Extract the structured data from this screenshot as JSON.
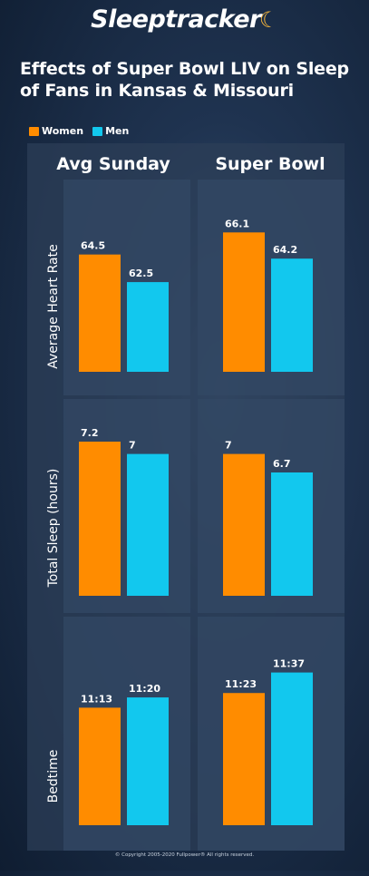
{
  "header": {
    "brand": "Sleeptracker",
    "title": "Effects of Super Bowl LIV on Sleep of Fans in Kansas & Missouri"
  },
  "legend": [
    {
      "label": "Women",
      "color": "#ff8c00"
    },
    {
      "label": "Men",
      "color": "#12c8ee"
    }
  ],
  "footer": {
    "copyright": "© Copyright 2005-2020 Fullpower® All rights reserved."
  },
  "chart_data": {
    "type": "bar",
    "columns": [
      "Avg Sunday",
      "Super Bowl"
    ],
    "series": [
      {
        "name": "Women",
        "color": "#ff8c00"
      },
      {
        "name": "Men",
        "color": "#12c8ee"
      }
    ],
    "rows": [
      {
        "label": "Average Heart Rate",
        "ylim": [
          56,
          67.5
        ],
        "cells": [
          {
            "values": [
              64.5,
              62.5
            ],
            "labels": [
              "64.5",
              "62.5"
            ]
          },
          {
            "values": [
              66.1,
              64.2
            ],
            "labels": [
              "66.1",
              "64.2"
            ]
          }
        ]
      },
      {
        "label": "Total Sleep (hours)",
        "ylim": [
          4.7,
          7.45
        ],
        "cells": [
          {
            "values": [
              7.2,
              7.0
            ],
            "labels": [
              "7.2",
              "7"
            ]
          },
          {
            "values": [
              7.0,
              6.7
            ],
            "labels": [
              "7",
              "6.7"
            ]
          }
        ]
      },
      {
        "label": "Bedtime",
        "ylim": [
          9.88,
          11.86
        ],
        "cells": [
          {
            "values": [
              11.2167,
              11.3333
            ],
            "labels": [
              "11:13",
              "11:20"
            ]
          },
          {
            "values": [
              11.3833,
              11.6167
            ],
            "labels": [
              "11:23",
              "11:37"
            ]
          }
        ]
      }
    ]
  }
}
